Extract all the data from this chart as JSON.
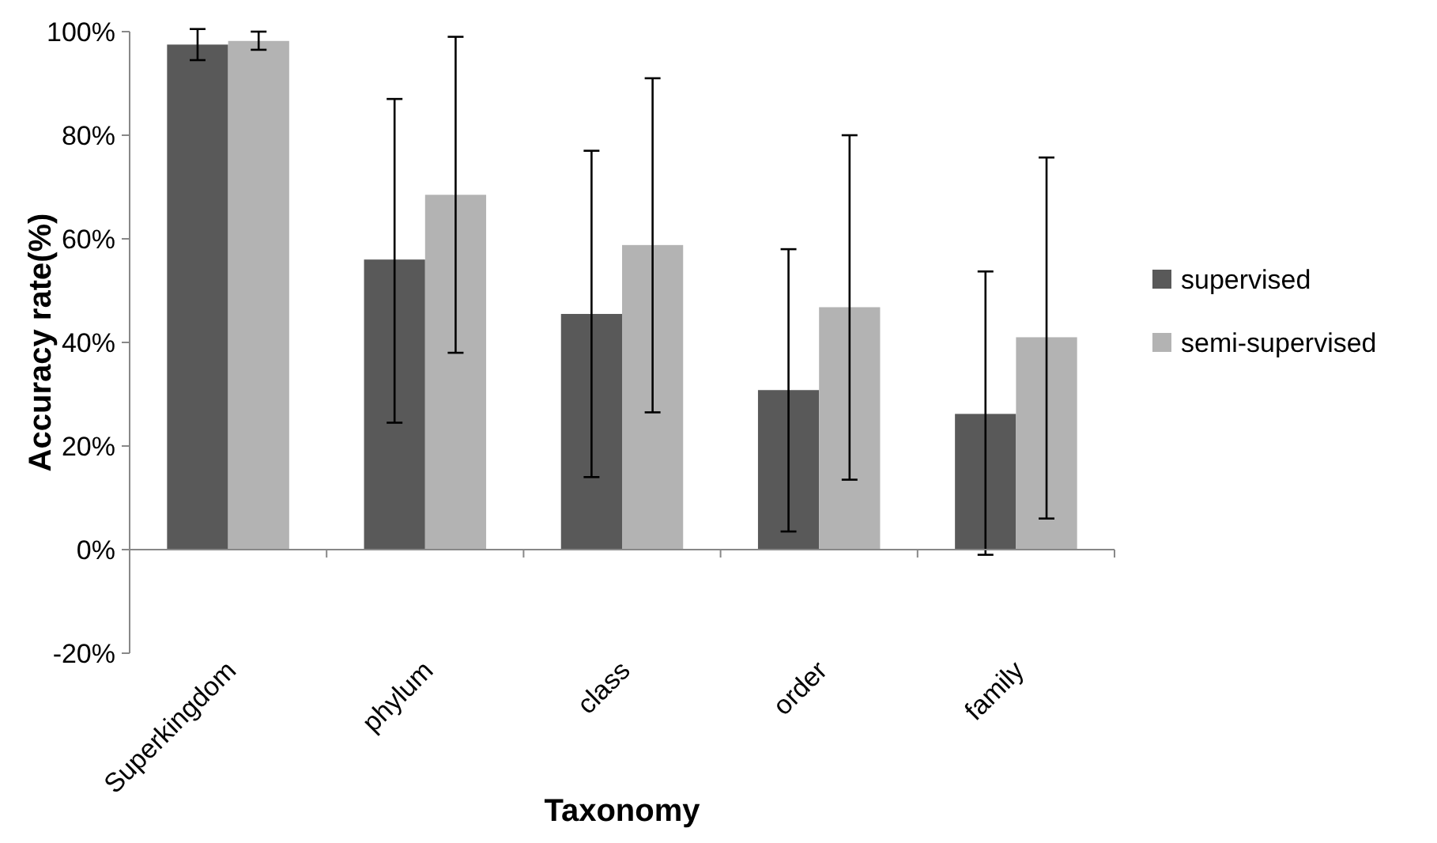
{
  "chart_data": {
    "type": "bar",
    "xlabel": "Taxonomy",
    "ylabel": "Accuracy rate(%)",
    "categories": [
      "Superkingdom",
      "phylum",
      "class",
      "order",
      "family"
    ],
    "series": [
      {
        "name": "supervised",
        "color": "#595959",
        "values": [
          97.5,
          56,
          45.5,
          30.8,
          26.2
        ],
        "errors": [
          [
            94.5,
            100.5
          ],
          [
            24.5,
            87
          ],
          [
            14,
            77
          ],
          [
            3.5,
            58
          ],
          [
            -1,
            53.7
          ]
        ]
      },
      {
        "name": "semi-supervised",
        "color": "#b3b3b3",
        "values": [
          98.2,
          68.5,
          58.8,
          46.8,
          41
        ],
        "errors": [
          [
            96.5,
            100
          ],
          [
            38,
            99
          ],
          [
            26.5,
            91
          ],
          [
            13.5,
            80
          ],
          [
            6,
            75.7
          ]
        ]
      }
    ],
    "ylim": [
      -20,
      100
    ],
    "yticks": [
      {
        "value": -20,
        "label": "-20%"
      },
      {
        "value": 0,
        "label": "0%"
      },
      {
        "value": 20,
        "label": "20%"
      },
      {
        "value": 40,
        "label": "40%"
      },
      {
        "value": 60,
        "label": "60%"
      },
      {
        "value": 80,
        "label": "80%"
      },
      {
        "value": 100,
        "label": "100%"
      }
    ],
    "legend": "right"
  }
}
